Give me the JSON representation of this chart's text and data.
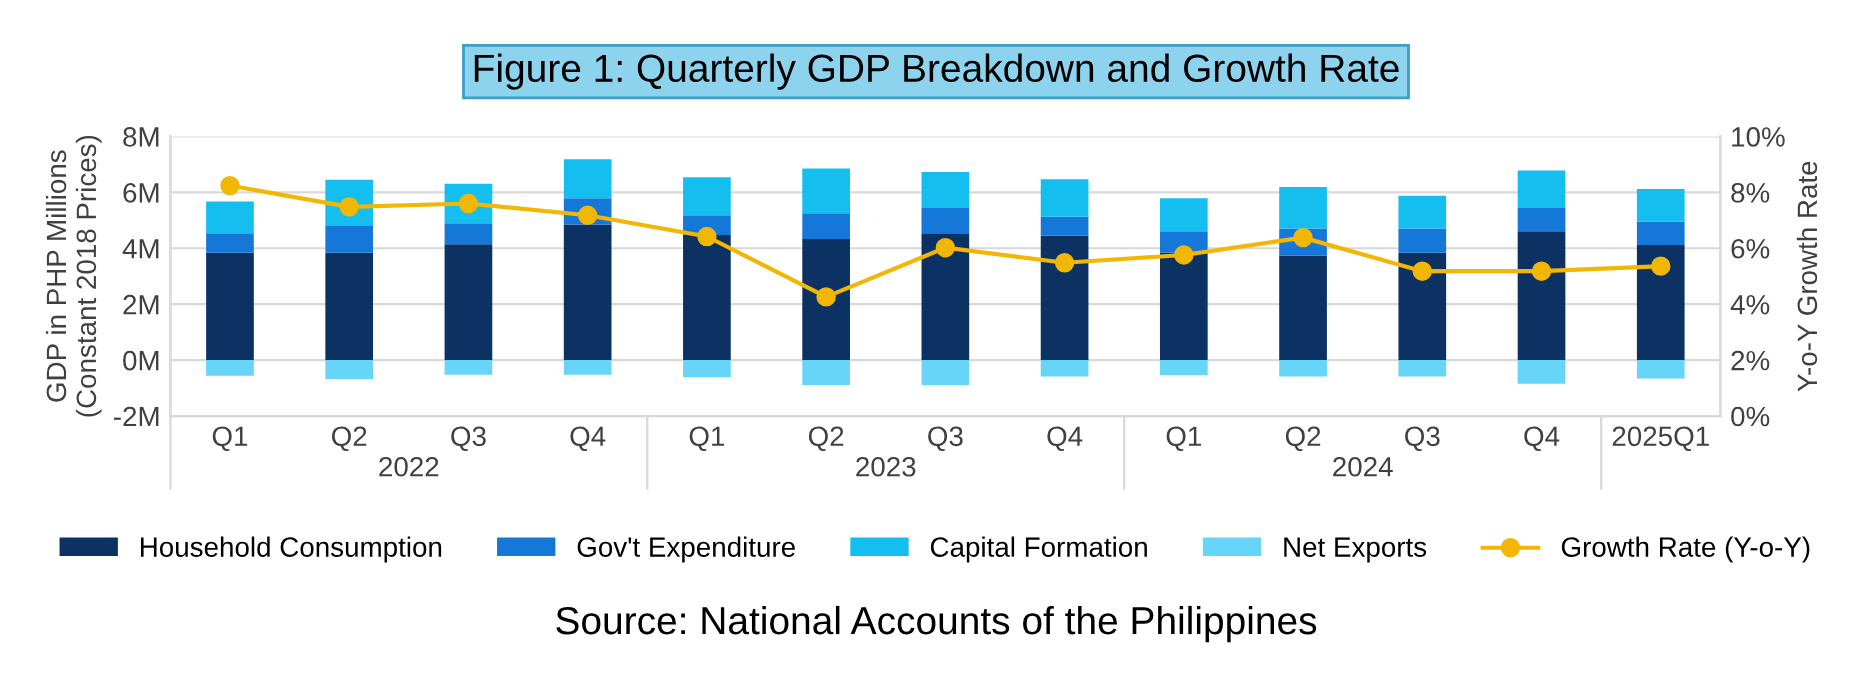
{
  "chart_data": {
    "type": "bar",
    "title": "Figure 1: Quarterly GDP Breakdown and Growth Rate",
    "categories": [
      "Q1",
      "Q2",
      "Q3",
      "Q4",
      "Q1",
      "Q2",
      "Q3",
      "Q4",
      "Q1",
      "Q2",
      "Q3",
      "Q4",
      "2025Q1"
    ],
    "stacked": true,
    "series": [
      {
        "name": "Household Consumption",
        "color": "#0b3263",
        "values": [
          3.84,
          3.84,
          4.14,
          4.85,
          4.47,
          4.33,
          4.54,
          4.45,
          3.84,
          3.74,
          3.84,
          4.61,
          4.12
        ]
      },
      {
        "name": "Gov't Expenditure",
        "color": "#1577d8",
        "values": [
          0.7,
          0.98,
          0.75,
          0.94,
          0.71,
          0.92,
          0.9,
          0.68,
          0.77,
          0.97,
          0.87,
          0.83,
          0.84
        ]
      },
      {
        "name": "Capital Formation",
        "color": "#14bff0",
        "values": [
          1.13,
          1.63,
          1.42,
          1.39,
          1.36,
          1.6,
          1.29,
          1.34,
          1.18,
          1.48,
          1.17,
          1.34,
          1.16
        ]
      },
      {
        "name": "Net Exports",
        "color": "#66d5f7",
        "values": [
          -0.56,
          -0.68,
          -0.52,
          -0.52,
          -0.61,
          -0.89,
          -0.89,
          -0.59,
          -0.54,
          -0.59,
          -0.59,
          -0.85,
          -0.66
        ]
      },
      {
        "name": "Growth Rate (Y-o-Y)",
        "type": "line",
        "axis": "y2",
        "color": "#f2b705",
        "marker": "circle",
        "values": [
          8.24,
          7.48,
          7.6,
          7.18,
          6.42,
          4.26,
          6.02,
          5.48,
          5.76,
          6.38,
          5.18,
          5.18,
          5.36
        ]
      }
    ],
    "ylabel": "GDP in PHP Millions\n(Constant 2018 Prices)",
    "y2label": "Y-o-Y Growth Rate",
    "ylim": [
      -2,
      8
    ],
    "yticks": [
      {
        "value": -2,
        "label": "-2M"
      },
      {
        "value": 0,
        "label": "0M"
      },
      {
        "value": 2,
        "label": "2M"
      },
      {
        "value": 4,
        "label": "4M"
      },
      {
        "value": 6,
        "label": "6M"
      },
      {
        "value": 8,
        "label": "8M"
      }
    ],
    "y2lim": [
      0,
      10
    ],
    "y2ticks": [
      {
        "value": 0,
        "label": "0%"
      },
      {
        "value": 2,
        "label": "2%"
      },
      {
        "value": 4,
        "label": "4%"
      },
      {
        "value": 6,
        "label": "6%"
      },
      {
        "value": 8,
        "label": "8%"
      },
      {
        "value": 10,
        "label": "10%"
      }
    ],
    "grid": "y",
    "legend": "bottom",
    "annotations": [
      "2022",
      "2023",
      "2024",
      "Source: National Accounts of the Philippines"
    ]
  }
}
